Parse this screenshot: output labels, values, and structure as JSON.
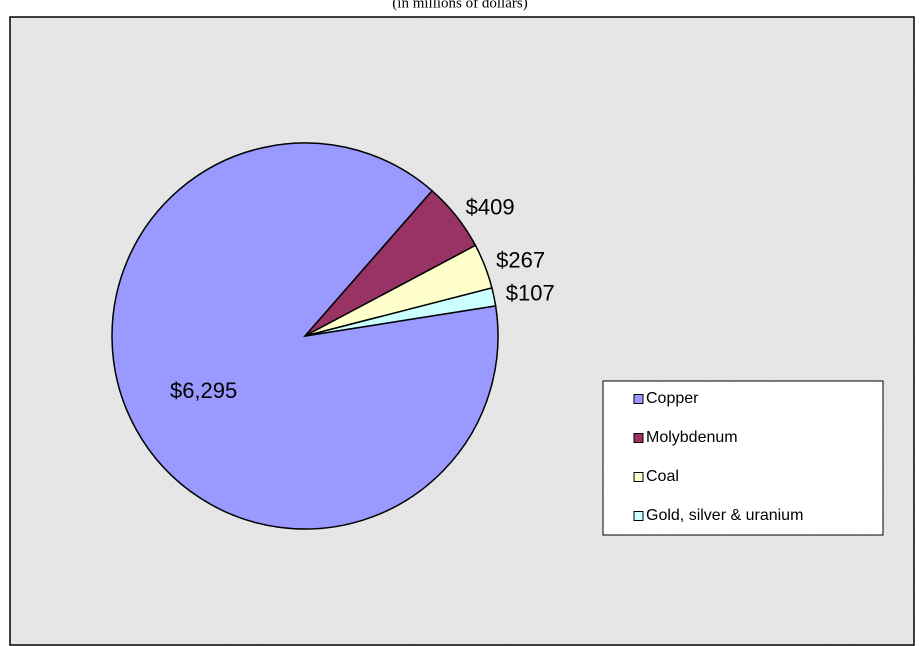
{
  "chart_data": {
    "type": "pie",
    "subtitle": "(in millions of dollars)",
    "categories": [
      "Copper",
      "Molybdenum",
      "Coal",
      "Gold, silver & uranium"
    ],
    "values": [
      6295,
      409,
      267,
      107
    ],
    "value_labels": [
      "$6,295",
      "$409",
      "$267",
      "$107"
    ],
    "colors": [
      "#9999ff",
      "#993366",
      "#ffffcc",
      "#ccffff"
    ],
    "legend": "right"
  }
}
